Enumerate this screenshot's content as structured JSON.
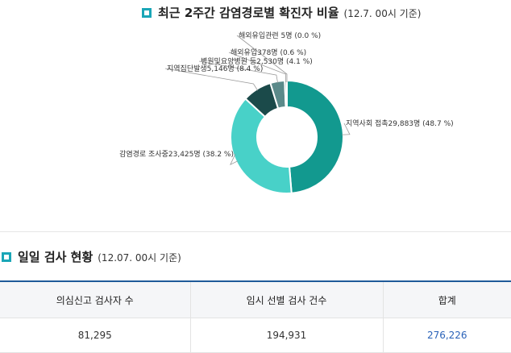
{
  "chart_section": {
    "title": "최근 2주간 감염경로별 확진자 비율",
    "subtitle": "(12.7. 00시 기준)"
  },
  "chart_data": {
    "type": "pie",
    "style": "donut",
    "title": "최근 2주간 감염경로별 확진자 비율",
    "slices": [
      {
        "name": "지역사회 접촉",
        "count": 29883,
        "percent": 48.7,
        "color": "#12998f",
        "label": "지역사회 접촉29,883명 (48.7 %)"
      },
      {
        "name": "감염경로 조사중",
        "count": 23425,
        "percent": 38.2,
        "color": "#48d1c8",
        "label": "감염경로 조사중23,425명 (38.2 %)"
      },
      {
        "name": "지역집단발생",
        "count": 5146,
        "percent": 8.4,
        "color": "#1b4a4a",
        "label": "지역집단발생5,146명 (8.4 %)"
      },
      {
        "name": "병원및요양병원 등",
        "count": 2530,
        "percent": 4.1,
        "color": "#5b8a8a",
        "label": "병원및요양병원 등2,530명 (4.1 %)"
      },
      {
        "name": "해외유입",
        "count": 378,
        "percent": 0.6,
        "color": "#9fb3b3",
        "label": "해외유입378명 (0.6 %)"
      },
      {
        "name": "해외유입관련",
        "count": 5,
        "percent": 0.0,
        "color": "#7e8f8f",
        "label": "해외유입관련 5명 (0.0 %)"
      }
    ]
  },
  "daily_section": {
    "title": "일일 검사 현황",
    "subtitle": "(12.07. 00시 기준)"
  },
  "daily_table": {
    "headers": [
      "의심신고 검사자 수",
      "임시 선별 검사 건수",
      "합계"
    ],
    "row": [
      "81,295",
      "194,931",
      "276,226"
    ]
  },
  "colors": {
    "accent": "#1aa6b7",
    "table_border": "#1f5a99",
    "total_value": "#2a62b8"
  }
}
